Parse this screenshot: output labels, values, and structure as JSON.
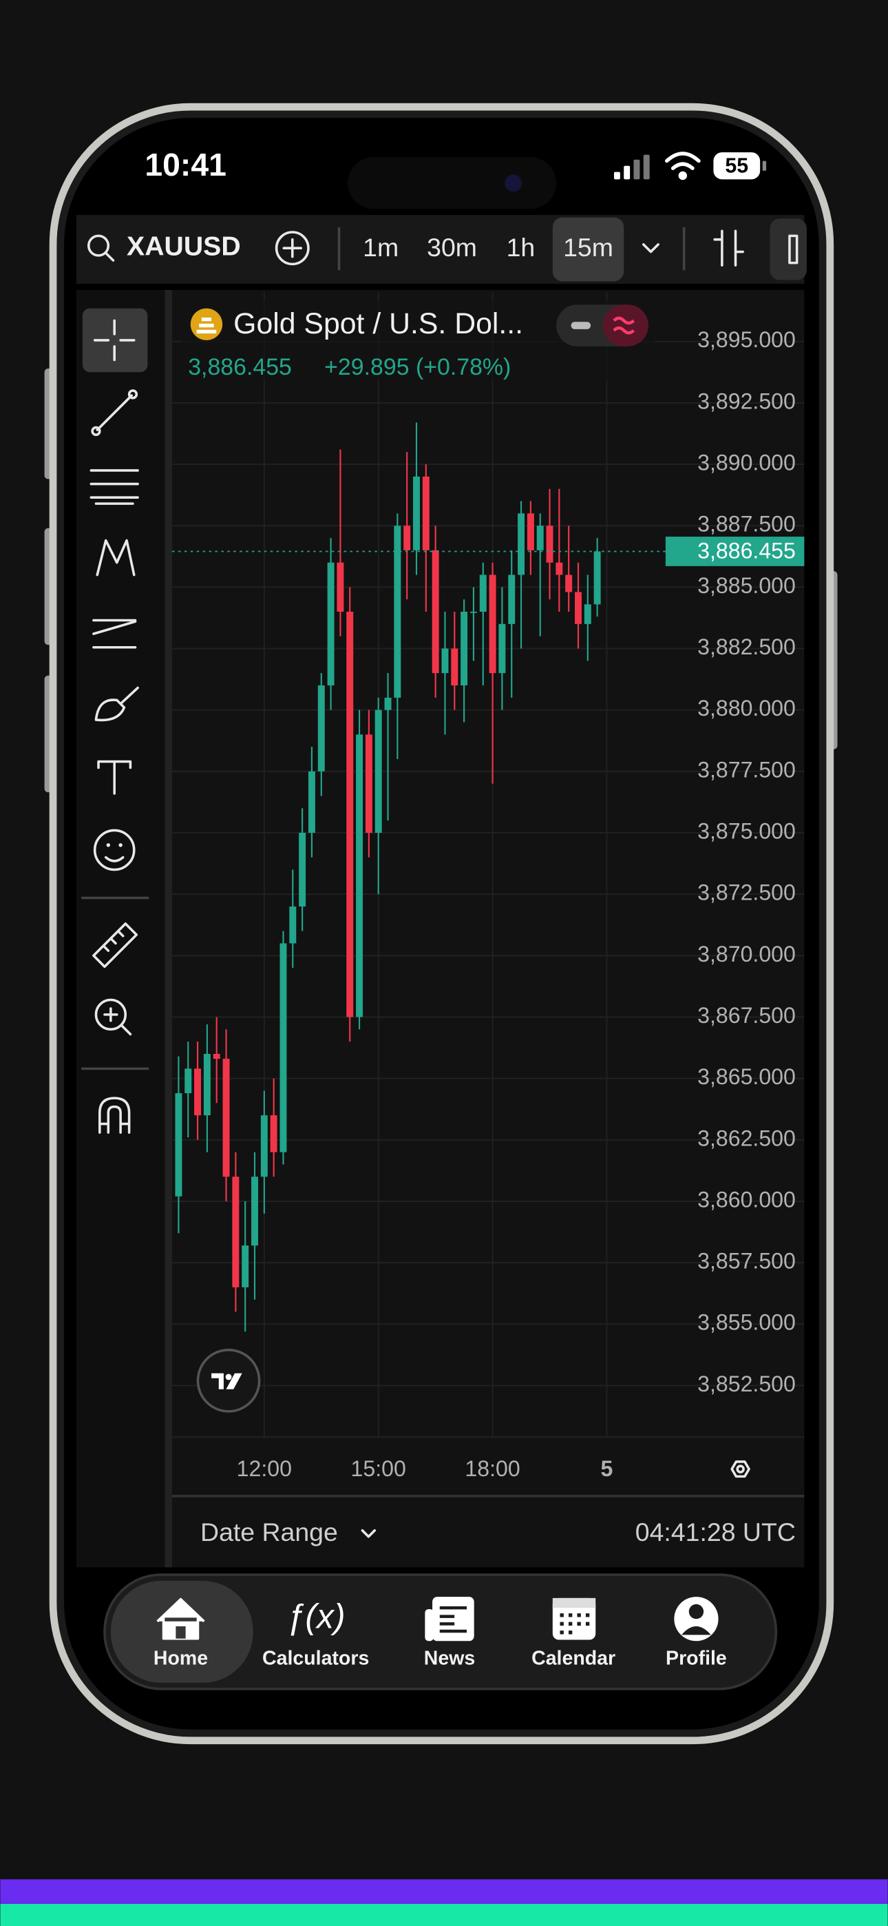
{
  "status_bar": {
    "time": "10:41",
    "battery": "55"
  },
  "toolbar": {
    "symbol": "XAUUSD",
    "intervals": [
      "1m",
      "30m",
      "1h",
      "15m"
    ]
  },
  "chart_data": {
    "type": "candlestick",
    "title": "Gold Spot / U.S. Dol...",
    "last": {
      "value": 3886.455,
      "label": "3,886.455"
    },
    "change": "+29.895 (+0.78%)",
    "x": [
      9.75,
      10,
      10.25,
      10.5,
      10.75,
      11,
      11.25,
      11.5,
      11.75,
      12,
      12.25,
      12.5,
      12.75,
      13,
      13.25,
      13.5,
      13.75,
      14,
      14.25,
      14.5,
      14.75,
      15,
      15.25,
      15.5,
      15.75,
      16,
      16.25,
      16.5,
      16.75,
      17,
      17.25,
      17.5,
      17.75,
      18,
      18.25,
      18.5,
      18.75,
      19,
      19.25,
      19.5,
      19.75,
      20,
      20.25,
      20.5,
      20.75
    ],
    "open": [
      3860.2,
      3864.4,
      3865.4,
      3863.5,
      3866.0,
      3865.8,
      3861.0,
      3856.5,
      3858.2,
      3861.0,
      3863.5,
      3862.0,
      3870.5,
      3872.0,
      3875.0,
      3877.5,
      3881.0,
      3886.0,
      3884.0,
      3867.5,
      3879.0,
      3875.0,
      3880.0,
      3880.5,
      3887.5,
      3886.5,
      3889.5,
      3886.5,
      3881.5,
      3882.5,
      3881.0,
      3884.0,
      3884.0,
      3885.5,
      3881.5,
      3883.5,
      3885.5,
      3888.0,
      3886.5,
      3887.5,
      3886.0,
      3885.5,
      3884.8,
      3883.5,
      3884.3
    ],
    "high": [
      3865.9,
      3866.5,
      3866.5,
      3867.2,
      3867.5,
      3867.0,
      3862.0,
      3860.0,
      3862.0,
      3864.5,
      3865.0,
      3871.0,
      3873.5,
      3876.0,
      3878.5,
      3881.5,
      3887.0,
      3890.6,
      3885.0,
      3880.0,
      3880.0,
      3880.5,
      3881.5,
      3888.0,
      3890.5,
      3891.7,
      3890.0,
      3887.5,
      3884.0,
      3884.0,
      3884.5,
      3885.0,
      3886.0,
      3886.0,
      3885.0,
      3886.5,
      3888.5,
      3888.5,
      3888.0,
      3889.0,
      3889.0,
      3887.5,
      3886.0,
      3885.5,
      3887.0
    ],
    "low": [
      3858.7,
      3862.6,
      3862.5,
      3862.0,
      3864.0,
      3860.0,
      3855.5,
      3854.7,
      3856.0,
      3859.5,
      3861.0,
      3861.5,
      3869.5,
      3871.0,
      3874.0,
      3876.5,
      3880.0,
      3883.0,
      3866.5,
      3867.0,
      3874.0,
      3872.5,
      3875.5,
      3878.0,
      3884.5,
      3885.5,
      3884.0,
      3880.5,
      3879.0,
      3880.0,
      3879.5,
      3882.0,
      3881.0,
      3877.0,
      3880.0,
      3880.5,
      3882.5,
      3885.5,
      3883.0,
      3884.5,
      3884.0,
      3884.0,
      3882.5,
      3882.0,
      3883.8
    ],
    "close": [
      3864.4,
      3865.4,
      3863.5,
      3866.0,
      3865.8,
      3861.0,
      3856.5,
      3858.2,
      3861.0,
      3863.5,
      3862.0,
      3870.5,
      3872.0,
      3875.0,
      3877.5,
      3881.0,
      3886.0,
      3884.0,
      3867.5,
      3879.0,
      3875.0,
      3880.0,
      3880.5,
      3887.5,
      3886.5,
      3889.5,
      3886.5,
      3881.5,
      3882.5,
      3881.0,
      3884.0,
      3884.0,
      3885.5,
      3881.5,
      3883.5,
      3885.5,
      3888.0,
      3886.5,
      3887.5,
      3886.0,
      3885.5,
      3884.8,
      3883.5,
      3884.3,
      3886.455
    ],
    "up_color": "#22a68c",
    "down_color": "#f2364a",
    "xlim": [
      9.58,
      22.48
    ],
    "xticks": [
      {
        "value": 12,
        "label": "12:00"
      },
      {
        "value": 15,
        "label": "15:00"
      },
      {
        "value": 18,
        "label": "18:00"
      },
      {
        "value": 21,
        "label": "5"
      }
    ],
    "ylim": [
      3850.4,
      3897
    ],
    "yticks": [
      {
        "value": 3895,
        "label": "3,895.000"
      },
      {
        "value": 3892.5,
        "label": "3,892.500"
      },
      {
        "value": 3890,
        "label": "3,890.000"
      },
      {
        "value": 3887.5,
        "label": "3,887.500"
      },
      {
        "value": 3885,
        "label": "3,885.000"
      },
      {
        "value": 3882.5,
        "label": "3,882.500"
      },
      {
        "value": 3880,
        "label": "3,880.000"
      },
      {
        "value": 3877.5,
        "label": "3,877.500"
      },
      {
        "value": 3875,
        "label": "3,875.000"
      },
      {
        "value": 3872.5,
        "label": "3,872.500"
      },
      {
        "value": 3870,
        "label": "3,870.000"
      },
      {
        "value": 3867.5,
        "label": "3,867.500"
      },
      {
        "value": 3865,
        "label": "3,865.000"
      },
      {
        "value": 3862.5,
        "label": "3,862.500"
      },
      {
        "value": 3860,
        "label": "3,860.000"
      },
      {
        "value": 3857.5,
        "label": "3,857.500"
      },
      {
        "value": 3855,
        "label": "3,855.000"
      },
      {
        "value": 3852.5,
        "label": "3,852.500"
      }
    ],
    "grid": true
  },
  "footer": {
    "date_range": "Date Range",
    "clock": "04:41:28 UTC"
  },
  "nav": [
    "Home",
    "Calculators",
    "News",
    "Calendar",
    "Profile"
  ]
}
